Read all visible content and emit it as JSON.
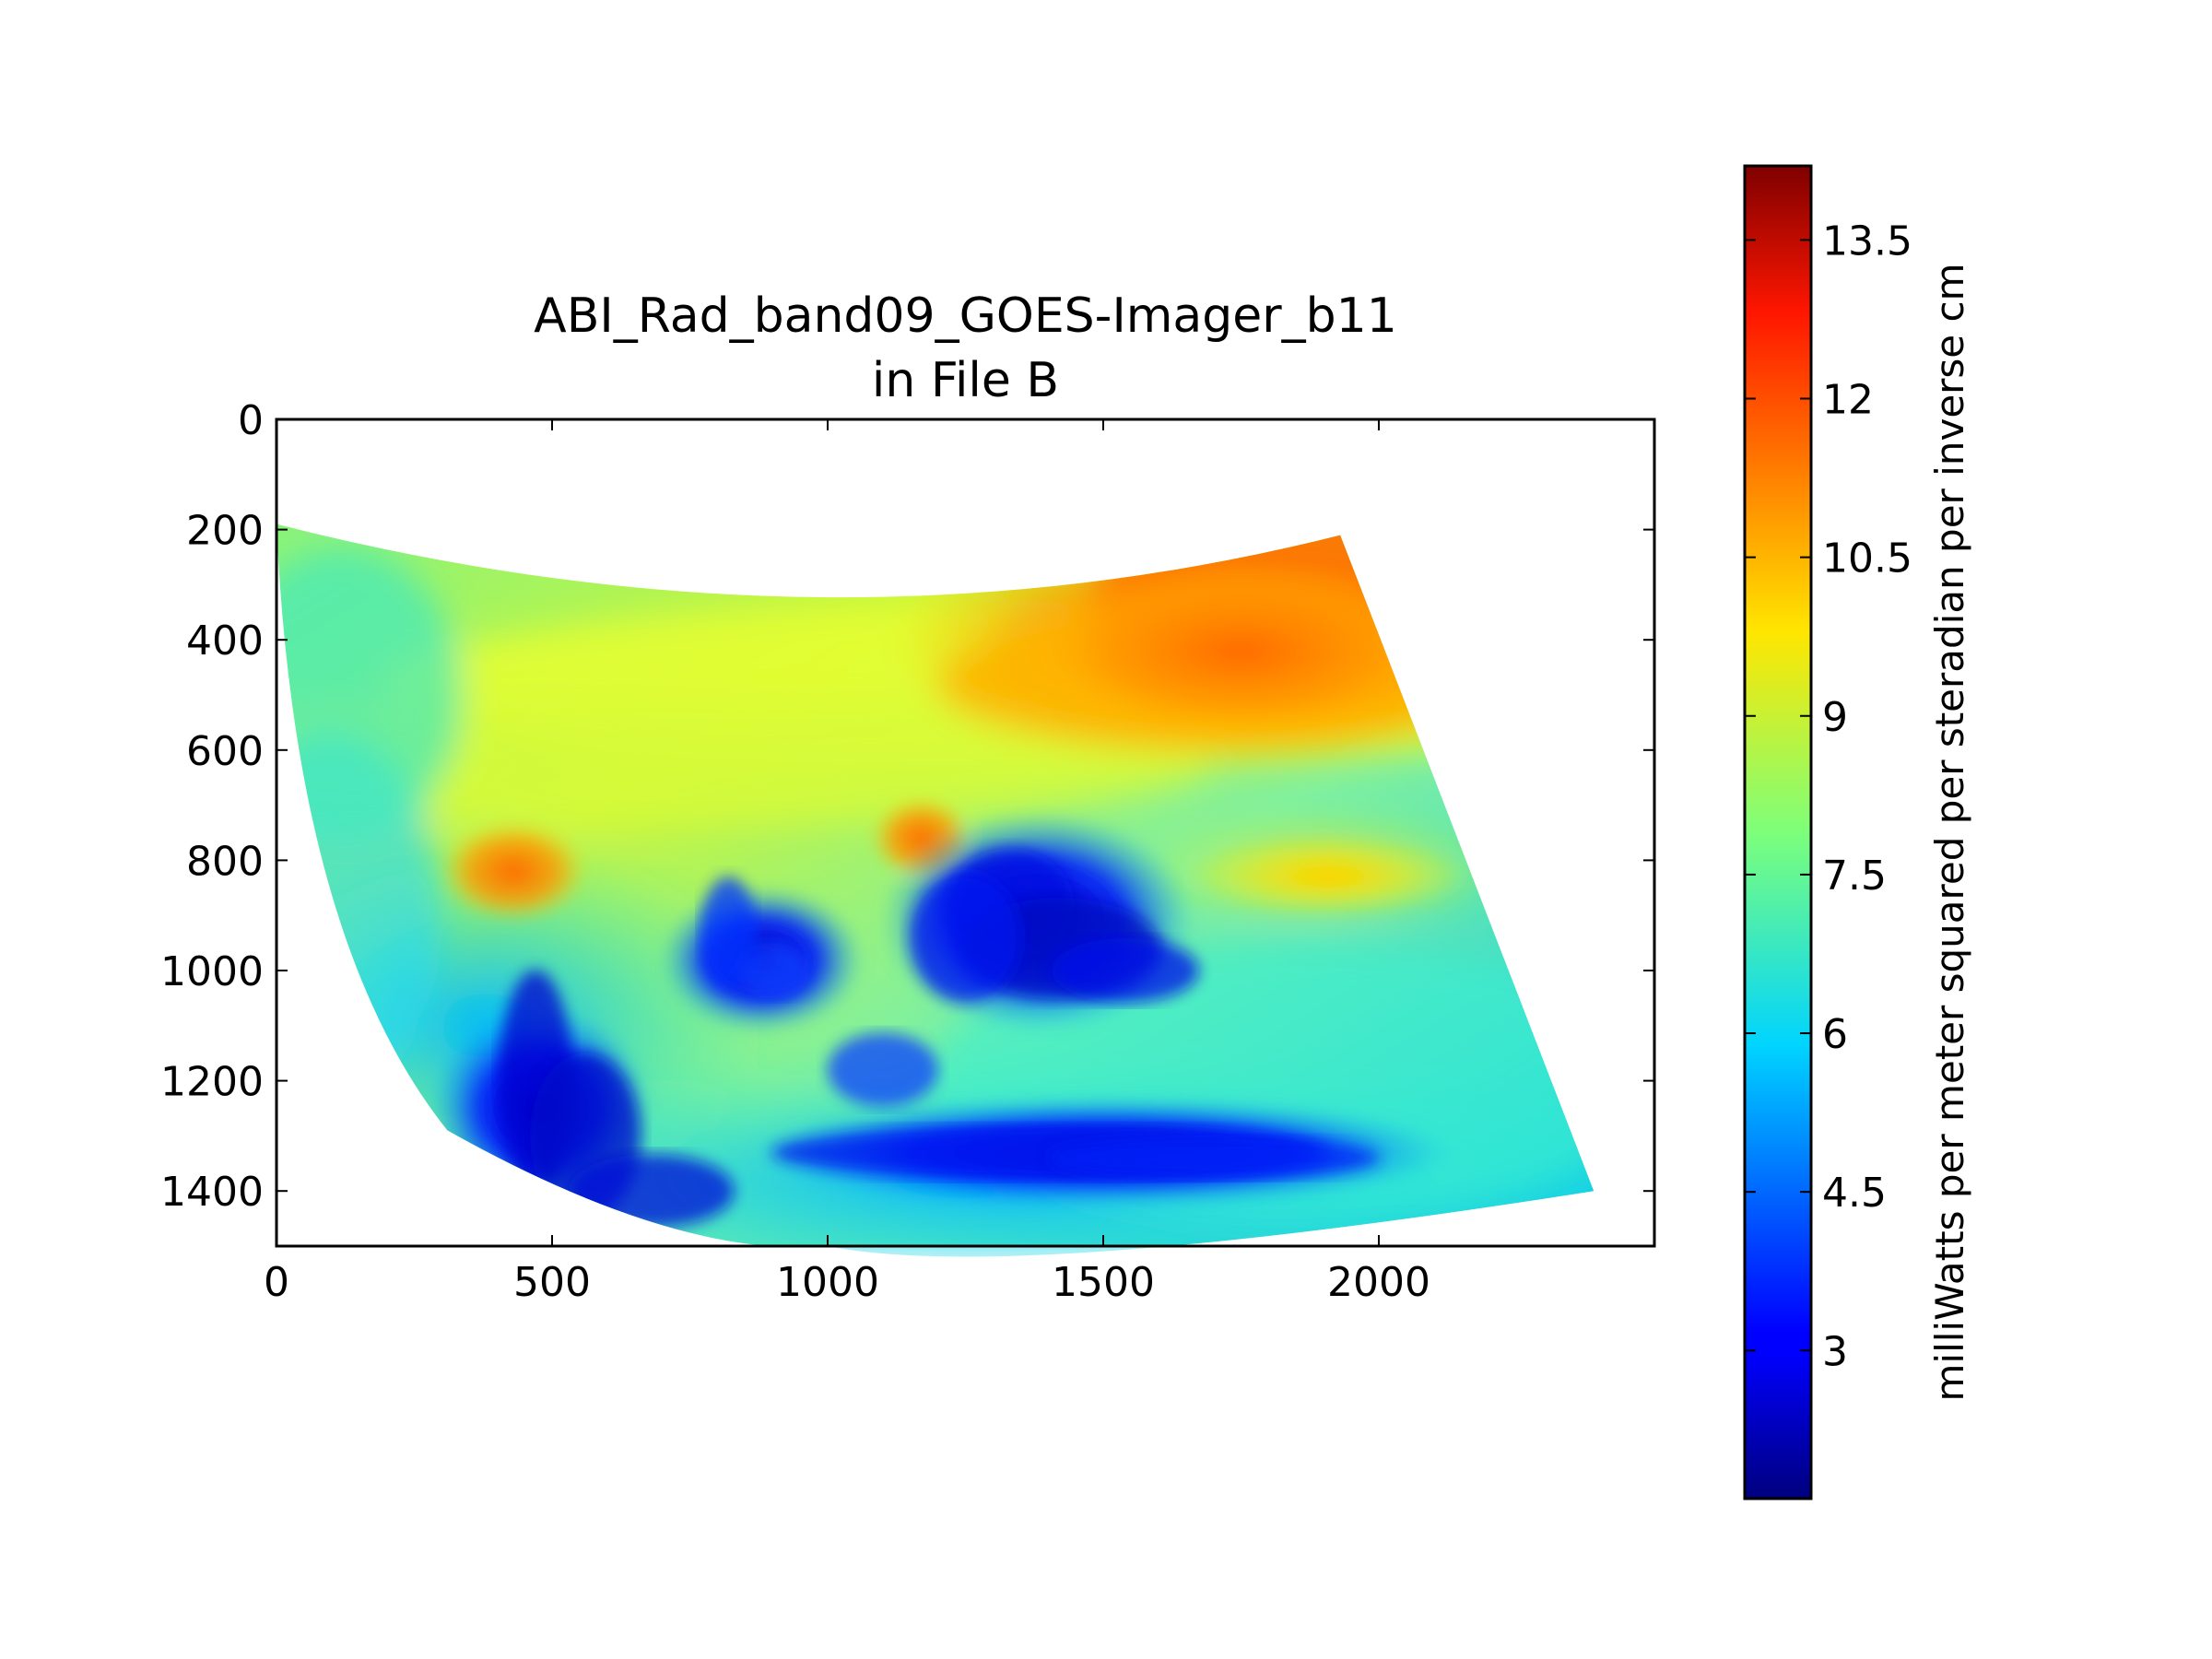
{
  "chart_data": {
    "type": "heatmap",
    "title_line1": "ABI_Rad_band09_GOES-Imager_b11",
    "title_line2": "in File B",
    "xlabel": "",
    "ylabel": "",
    "xlim": [
      0,
      2500
    ],
    "ylim": [
      1500,
      0
    ],
    "x_ticks": [
      0,
      500,
      1000,
      1500,
      2000
    ],
    "y_ticks": [
      0,
      200,
      400,
      600,
      800,
      1000,
      1200,
      1400
    ],
    "colormap": "jet",
    "colorbar": {
      "label": "milliWatts per meter squared per steradian per inverse cm",
      "range": [
        1.6,
        14.2
      ],
      "ticks": [
        3,
        4.5,
        6,
        7.5,
        9,
        10.5,
        12,
        13.5
      ],
      "tick_labels": [
        "3",
        "4.5",
        "6",
        "7.5",
        "9",
        "10.5",
        "12",
        "13.5"
      ]
    },
    "swath_outline": [
      [
        0,
        190
      ],
      [
        1000,
        345
      ],
      [
        1930,
        210
      ],
      [
        2390,
        1400
      ],
      [
        1000,
        1500
      ],
      [
        310,
        1290
      ]
    ],
    "features": [
      {
        "name": "warm-region-northeast",
        "center": [
          1750,
          420
        ],
        "value": 11.8
      },
      {
        "name": "warm-spot-west",
        "center": [
          430,
          820
        ],
        "value": 11.5
      },
      {
        "name": "warm-spot-center",
        "center": [
          1170,
          760
        ],
        "value": 11.2
      },
      {
        "name": "warm-band-east",
        "center": [
          1910,
          830
        ],
        "value": 10.2
      },
      {
        "name": "cold-cloud-central",
        "center": [
          1380,
          910
        ],
        "value": 2.4
      },
      {
        "name": "cold-cloud-southwest",
        "center": [
          480,
          1250
        ],
        "value": 2.8
      },
      {
        "name": "cold-band-south",
        "center": [
          1500,
          1330
        ],
        "value": 3.0
      },
      {
        "name": "cold-cloud-arc",
        "center": [
          880,
          980
        ],
        "value": 3.2
      }
    ]
  }
}
